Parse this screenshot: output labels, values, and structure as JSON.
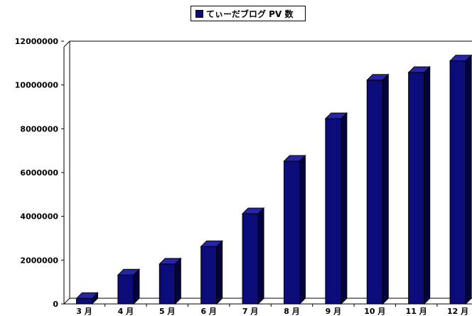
{
  "chart_data": {
    "type": "bar",
    "categories": [
      "3 月",
      "4 月",
      "5 月",
      "6 月",
      "7 月",
      "8 月",
      "9 月",
      "10 月",
      "11 月",
      "12 月"
    ],
    "series": [
      {
        "name": "てぃーだブログ PV 数",
        "values": [
          250000,
          1320000,
          1820000,
          2620000,
          4120000,
          6520000,
          8460000,
          10220000,
          10570000,
          11100000
        ]
      }
    ],
    "ylim": [
      0,
      12000000
    ],
    "yticks": [
      0,
      2000000,
      4000000,
      6000000,
      8000000,
      10000000,
      12000000
    ],
    "ytick_labels": [
      "0",
      "2000000",
      "4000000",
      "6000000",
      "8000000",
      "10000000",
      "12000000"
    ],
    "legend_position": "top-center",
    "grid": false,
    "bar_style": "3d",
    "colors": {
      "front": "#0b0b7a",
      "side": "#03033d",
      "top": "#2525a6"
    }
  }
}
